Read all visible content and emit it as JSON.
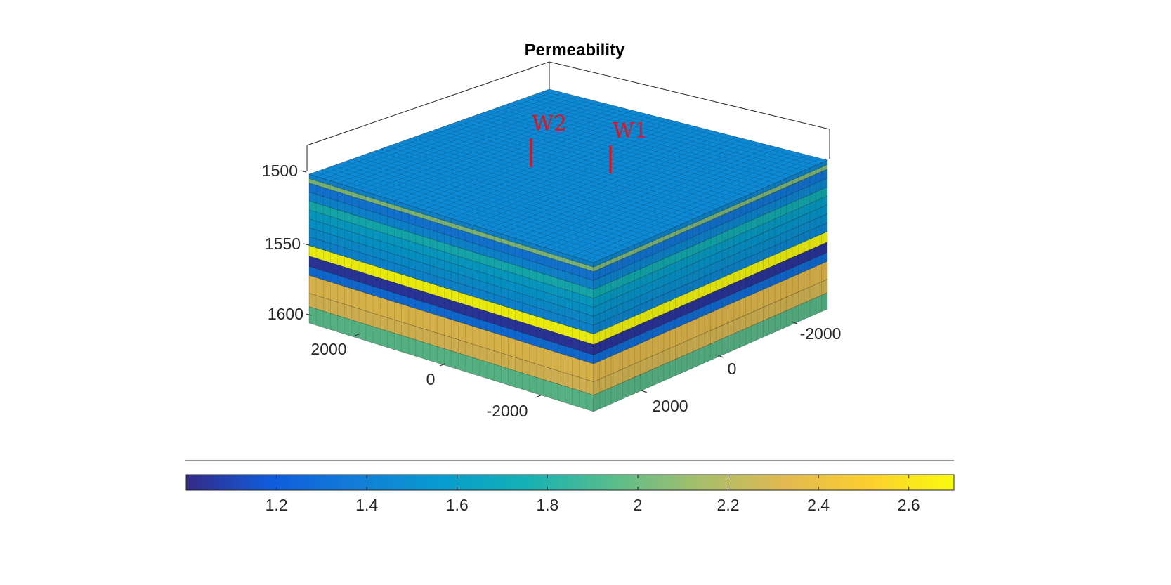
{
  "chart_data": {
    "type": "3d-grid",
    "title": "Permeability",
    "axes": {
      "z": {
        "ticks": [
          1500,
          1550,
          1600
        ],
        "direction": "reverse",
        "range": [
          1500,
          1600
        ]
      },
      "x": {
        "ticks": [
          2000,
          0,
          -2000
        ]
      },
      "y": {
        "ticks": [
          -2000,
          0,
          2000
        ]
      }
    },
    "layers": [
      {
        "top": 1500,
        "bottom": 1503,
        "value": 1.45
      },
      {
        "top": 1503,
        "bottom": 1506,
        "value": 2.05
      },
      {
        "top": 1506,
        "bottom": 1512,
        "value": 1.35
      },
      {
        "top": 1512,
        "bottom": 1518,
        "value": 1.45
      },
      {
        "top": 1518,
        "bottom": 1524,
        "value": 1.75
      },
      {
        "top": 1524,
        "bottom": 1530,
        "value": 1.6
      },
      {
        "top": 1530,
        "bottom": 1536,
        "value": 1.55
      },
      {
        "top": 1536,
        "bottom": 1542,
        "value": 1.5
      },
      {
        "top": 1542,
        "bottom": 1548,
        "value": 1.45
      },
      {
        "top": 1548,
        "bottom": 1555,
        "value": 2.7
      },
      {
        "top": 1555,
        "bottom": 1562,
        "value": 1.05
      },
      {
        "top": 1562,
        "bottom": 1568,
        "value": 1.3
      },
      {
        "top": 1568,
        "bottom": 1580,
        "value": 2.35
      },
      {
        "top": 1580,
        "bottom": 1589,
        "value": 2.3
      },
      {
        "top": 1589,
        "bottom": 1600,
        "value": 1.95
      }
    ],
    "wells": [
      {
        "name": "W1",
        "color": "#e8101a"
      },
      {
        "name": "W2",
        "color": "#e8101a"
      }
    ],
    "colorbar": {
      "colormap": "parula",
      "range": [
        1.0,
        2.7
      ],
      "ticks": [
        "1.2",
        "1.4",
        "1.6",
        "1.8",
        "2",
        "2.2",
        "2.4",
        "2.6"
      ]
    }
  }
}
